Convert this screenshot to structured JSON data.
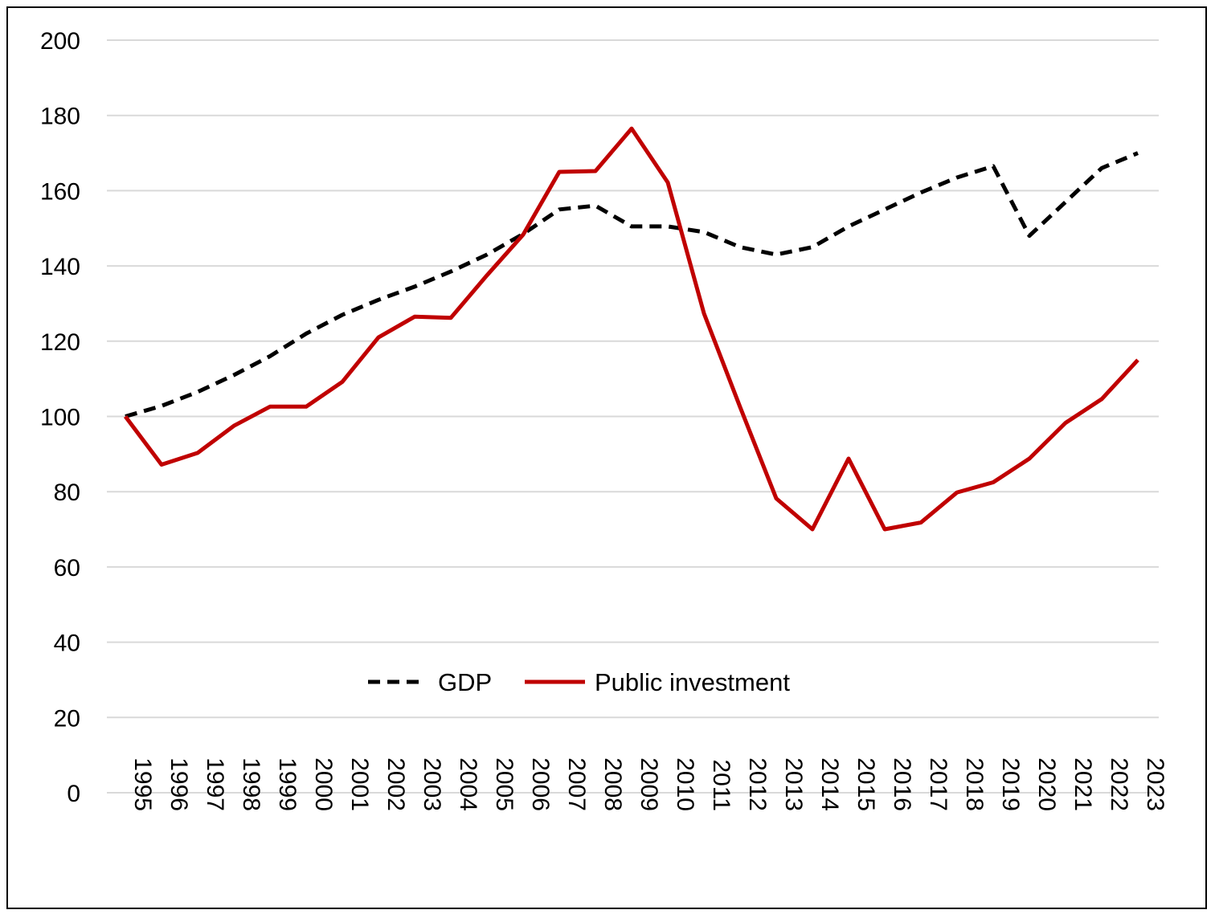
{
  "chart_data": {
    "type": "line",
    "title": "",
    "xlabel": "",
    "ylabel": "",
    "x": [
      "1995",
      "1996",
      "1997",
      "1998",
      "1999",
      "2000",
      "2001",
      "2002",
      "2003",
      "2004",
      "2005",
      "2006",
      "2007",
      "2008",
      "2009",
      "2010",
      "2011",
      "2012",
      "2013",
      "2014",
      "2015",
      "2016",
      "2017",
      "2018",
      "2019",
      "2020",
      "2021",
      "2022",
      "2023"
    ],
    "ylim": [
      0,
      200
    ],
    "yticks": [
      "0",
      "20",
      "40",
      "60",
      "80",
      "100",
      "120",
      "140",
      "160",
      "180",
      "200"
    ],
    "grid": "horizontal",
    "legend": "bottom-center",
    "series": [
      {
        "name": "GDP",
        "color": "#000000",
        "style": "dashed",
        "values": [
          100,
          102.8,
          106.5,
          111,
          116,
          122,
          127,
          131,
          134.5,
          138.5,
          143,
          148.5,
          155,
          156,
          150.5,
          150.5,
          149,
          145,
          143,
          145,
          150.5,
          155,
          159.5,
          163.5,
          166.5,
          148,
          157,
          166,
          170
        ]
      },
      {
        "name": "Public investment",
        "color": "#C00000",
        "style": "solid",
        "values": [
          100,
          87.2,
          90.3,
          97.5,
          102.6,
          102.6,
          109.2,
          121,
          126.5,
          126.2,
          137.5,
          148.3,
          165,
          165.2,
          176.5,
          162.2,
          127.4,
          102.5,
          78.2,
          70,
          88.8,
          70,
          71.8,
          79.8,
          82.5,
          88.8,
          98.3,
          104.6,
          115
        ]
      }
    ]
  }
}
